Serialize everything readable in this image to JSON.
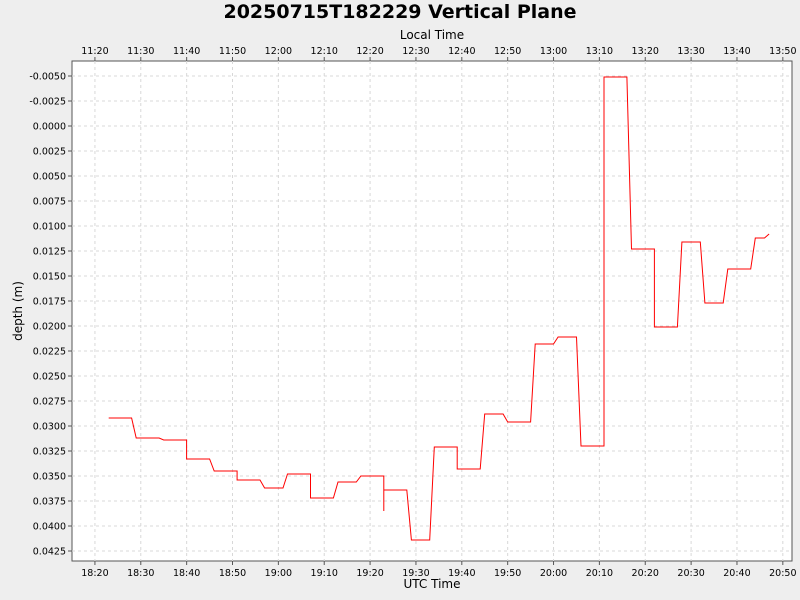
{
  "chart_data": {
    "type": "line",
    "title": "20250715T182229 Vertical Plane",
    "xlabel": "UTC Time",
    "x2label": "Local Time",
    "ylabel": "depth (m)",
    "y_inverted": true,
    "ylim": [
      -0.0065,
      0.0435
    ],
    "xlim": [
      "18:15",
      "20:52"
    ],
    "grid": true,
    "line_color": "#ff0000",
    "x_ticks_utc": [
      "18:20",
      "18:30",
      "18:40",
      "18:50",
      "19:00",
      "19:10",
      "19:20",
      "19:30",
      "19:40",
      "19:50",
      "20:00",
      "20:10",
      "20:20",
      "20:30",
      "20:40",
      "20:50"
    ],
    "x_ticks_local": [
      "11:20",
      "11:30",
      "11:40",
      "11:50",
      "12:00",
      "12:10",
      "12:20",
      "12:30",
      "12:40",
      "12:50",
      "13:00",
      "13:10",
      "13:20",
      "13:30",
      "13:40",
      "13:50"
    ],
    "y_ticks": [
      "-0.0050",
      "-0.0025",
      "0.0000",
      "0.0025",
      "0.0050",
      "0.0075",
      "0.0100",
      "0.0125",
      "0.0150",
      "0.0175",
      "0.0200",
      "0.0225",
      "0.0250",
      "0.0275",
      "0.0300",
      "0.0325",
      "0.0350",
      "0.0375",
      "0.0400",
      "0.0425"
    ],
    "series": [
      {
        "x": [
          "18:23",
          "18:28",
          "18:29",
          "18:34",
          "18:35",
          "18:40",
          "18:40",
          "18:45",
          "18:46",
          "18:51",
          "18:51",
          "18:56",
          "18:57",
          "19:01",
          "19:02",
          "19:07",
          "19:07",
          "19:12",
          "19:13",
          "19:17",
          "19:18",
          "19:23",
          "19:23",
          "19:23",
          "19:24",
          "19:28",
          "19:29",
          "19:33",
          "19:34",
          "19:39",
          "19:39",
          "19:44",
          "19:45",
          "19:49",
          "19:50",
          "19:55",
          "19:56",
          "20:00",
          "20:01",
          "20:05",
          "20:06",
          "20:11",
          "20:11",
          "20:16",
          "20:17",
          "20:22",
          "20:22",
          "20:27",
          "20:28",
          "20:32",
          "20:33",
          "20:37",
          "20:38",
          "20:43",
          "20:44",
          "20:46",
          "20:47"
        ],
        "y": [
          0.0292,
          0.0292,
          0.0312,
          0.0312,
          0.0314,
          0.0314,
          0.0333,
          0.0333,
          0.0345,
          0.0345,
          0.0354,
          0.0354,
          0.0362,
          0.0362,
          0.0348,
          0.0348,
          0.0372,
          0.0372,
          0.0356,
          0.0356,
          0.035,
          0.035,
          0.0385,
          0.0364,
          0.0364,
          0.0364,
          0.0414,
          0.0414,
          0.0321,
          0.0321,
          0.0343,
          0.0343,
          0.0288,
          0.0288,
          0.0296,
          0.0296,
          0.0218,
          0.0218,
          0.0211,
          0.0211,
          0.032,
          0.032,
          -0.0049,
          -0.0049,
          0.0123,
          0.0123,
          0.0201,
          0.0201,
          0.0116,
          0.0116,
          0.0177,
          0.0177,
          0.0143,
          0.0143,
          0.0112,
          0.0112,
          0.0108
        ]
      }
    ]
  }
}
